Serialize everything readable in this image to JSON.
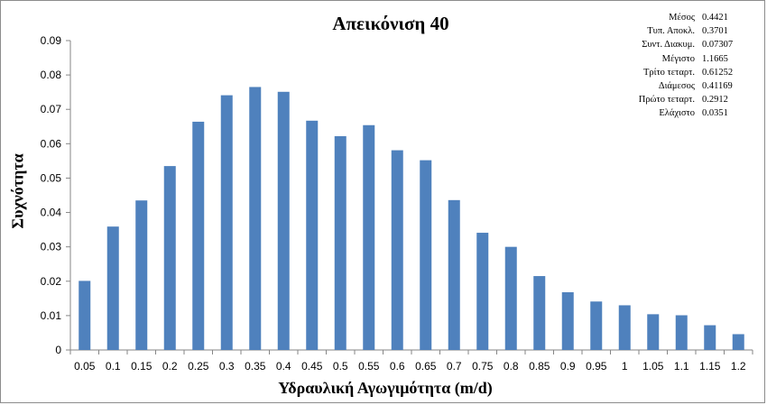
{
  "chart_data": {
    "type": "bar",
    "title": "Απεικόνιση 40",
    "xlabel": "Υδραυλική Αγωγιμότητα  (m/d)",
    "ylabel": "Συχνότητα",
    "ylim": [
      0,
      0.09
    ],
    "yticks": [
      "0",
      "0.01",
      "0.02",
      "0.03",
      "0.04",
      "0.05",
      "0.06",
      "0.07",
      "0.08",
      "0.09"
    ],
    "categories": [
      "0.05",
      "0.1",
      "0.15",
      "0.2",
      "0.25",
      "0.3",
      "0.35",
      "0.4",
      "0.45",
      "0.5",
      "0.55",
      "0.6",
      "0.65",
      "0.7",
      "0.75",
      "0.8",
      "0.85",
      "0.9",
      "0.95",
      "1",
      "1.05",
      "1.1",
      "1.15",
      "1.2"
    ],
    "values": [
      0.0201,
      0.0359,
      0.0435,
      0.0535,
      0.0664,
      0.0741,
      0.0765,
      0.0751,
      0.0667,
      0.0622,
      0.0654,
      0.0581,
      0.0552,
      0.0436,
      0.0341,
      0.03,
      0.0215,
      0.0168,
      0.0141,
      0.013,
      0.0104,
      0.0101,
      0.0072,
      0.0046
    ],
    "bar_color": "#4f81bd",
    "grid": false,
    "legend": "none",
    "stats": [
      {
        "label": "Μέσος",
        "value": "0.4421"
      },
      {
        "label": "Τυπ. Αποκλ.",
        "value": "0.3701"
      },
      {
        "label": "Συντ. Διακυμ.",
        "value": "0.07307"
      },
      {
        "label": "Μέγιστο",
        "value": "1.1665"
      },
      {
        "label": "Τρίτο τεταρτ.",
        "value": "0.61252"
      },
      {
        "label": "Διάμεσος",
        "value": "0.41169"
      },
      {
        "label": "Πρώτο τεταρτ.",
        "value": "0.2912"
      },
      {
        "label": "Ελάχιστο",
        "value": "0.0351"
      }
    ]
  }
}
